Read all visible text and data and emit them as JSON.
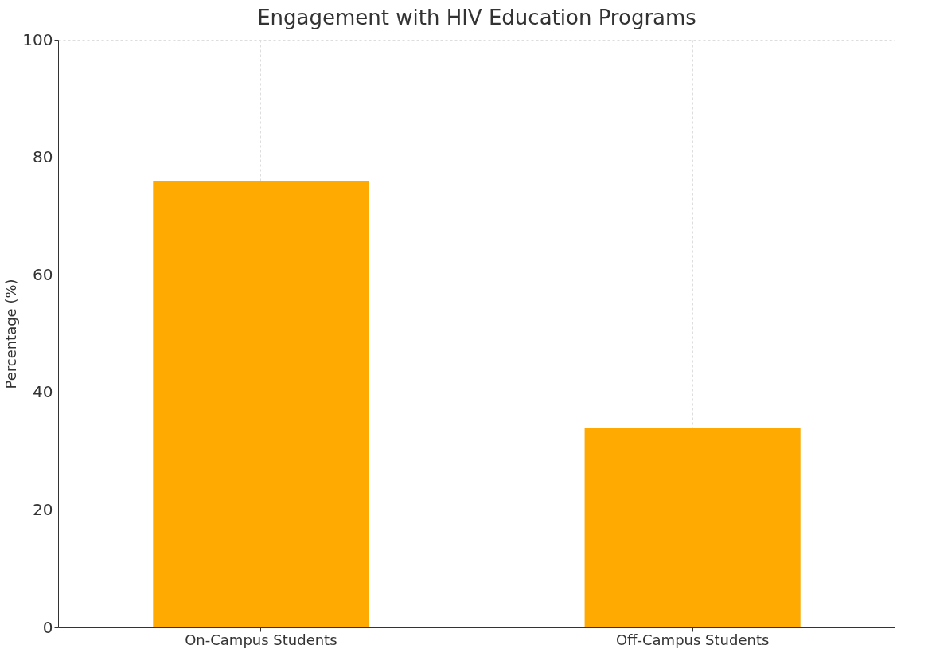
{
  "chart_data": {
    "type": "bar",
    "title": "Engagement with HIV Education Programs",
    "ylabel": "Percentage (%)",
    "categories": [
      "On-Campus Students",
      "Off-Campus Students"
    ],
    "values": [
      76,
      34
    ],
    "color": "#ffaa00",
    "ylim": [
      0,
      100
    ],
    "yticks": [
      0,
      20,
      40,
      60,
      80,
      100
    ],
    "grid": true
  }
}
